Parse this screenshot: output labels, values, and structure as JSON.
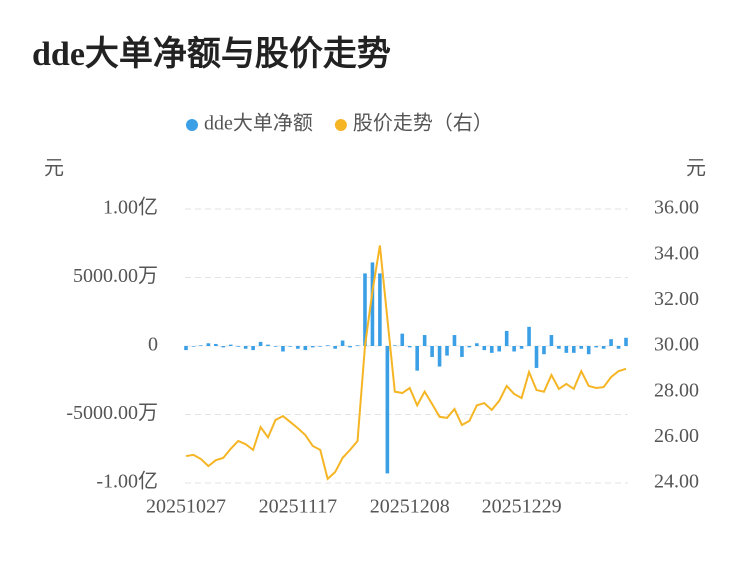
{
  "chart_data": {
    "type": "bar",
    "title": "dde大单净额与股价走势",
    "ylabel": "元",
    "y2label": "元",
    "categories": [
      "20251027",
      null,
      null,
      null,
      null,
      null,
      null,
      null,
      null,
      null,
      null,
      null,
      null,
      null,
      null,
      "20251117",
      null,
      null,
      null,
      null,
      null,
      null,
      null,
      null,
      null,
      null,
      null,
      null,
      null,
      null,
      "20251208",
      null,
      null,
      null,
      null,
      null,
      null,
      null,
      null,
      null,
      null,
      null,
      null,
      null,
      null,
      "20251229",
      null,
      null,
      null,
      null,
      null,
      null,
      null,
      null,
      null,
      null,
      null,
      null,
      null,
      null
    ],
    "series": [
      {
        "name": "dde大单净额",
        "color": "#3b9fe6",
        "values": [
          -300,
          -50,
          50,
          200,
          150,
          -100,
          100,
          -50,
          -200,
          -300,
          300,
          100,
          -50,
          -400,
          -50,
          -200,
          -300,
          -100,
          -50,
          50,
          -200,
          400,
          -100,
          50,
          5300,
          6100,
          5300,
          -9300,
          50,
          900,
          -100,
          -1800,
          800,
          -800,
          -1500,
          -700,
          800,
          -800,
          -100,
          200,
          -300,
          -500,
          -400,
          1100,
          -400,
          -200,
          1400,
          -1600,
          -600,
          800,
          -200,
          -500,
          -500,
          -200,
          -600,
          -100,
          -200,
          500,
          -200,
          600
        ]
      },
      {
        "name": "股价走势（右）",
        "color": "#f5b524",
        "type": "line",
        "axis": "y2",
        "values": [
          25.18,
          25.23,
          25.05,
          24.74,
          25.0,
          25.1,
          25.5,
          25.84,
          25.7,
          25.45,
          26.45,
          26.0,
          26.76,
          26.93,
          26.67,
          26.4,
          26.1,
          25.62,
          25.45,
          24.18,
          24.48,
          25.1,
          25.45,
          25.84,
          30.0,
          32.4,
          34.4,
          31.2,
          28.0,
          27.94,
          28.16,
          27.4,
          28.0,
          27.46,
          26.9,
          26.85,
          27.24,
          26.54,
          26.72,
          27.4,
          27.5,
          27.2,
          27.6,
          28.25,
          27.9,
          27.72,
          28.86,
          28.07,
          28.0,
          28.73,
          28.12,
          28.34,
          28.12,
          28.9,
          28.25,
          28.16,
          28.2,
          28.64,
          28.9,
          29.0
        ]
      }
    ],
    "ylim": [
      -10000,
      10000
    ],
    "yticks": [
      {
        "value": -10000,
        "label": "-1.00亿"
      },
      {
        "value": -5000,
        "label": "-5000.00万"
      },
      0,
      {
        "value": 5000,
        "label": "5000.00万"
      },
      {
        "value": 10000,
        "label": "1.00亿"
      }
    ],
    "y2lim": [
      24,
      36
    ],
    "y2ticks": [
      {
        "value": 24,
        "label": "24.00"
      },
      {
        "value": 26,
        "label": "26.00"
      },
      {
        "value": 28,
        "label": "28.00"
      },
      {
        "value": 30,
        "label": "30.00"
      },
      {
        "value": 32,
        "label": "32.00"
      },
      {
        "value": 34,
        "label": "34.00"
      },
      {
        "value": 36,
        "label": "36.00"
      }
    ],
    "grid": true
  }
}
